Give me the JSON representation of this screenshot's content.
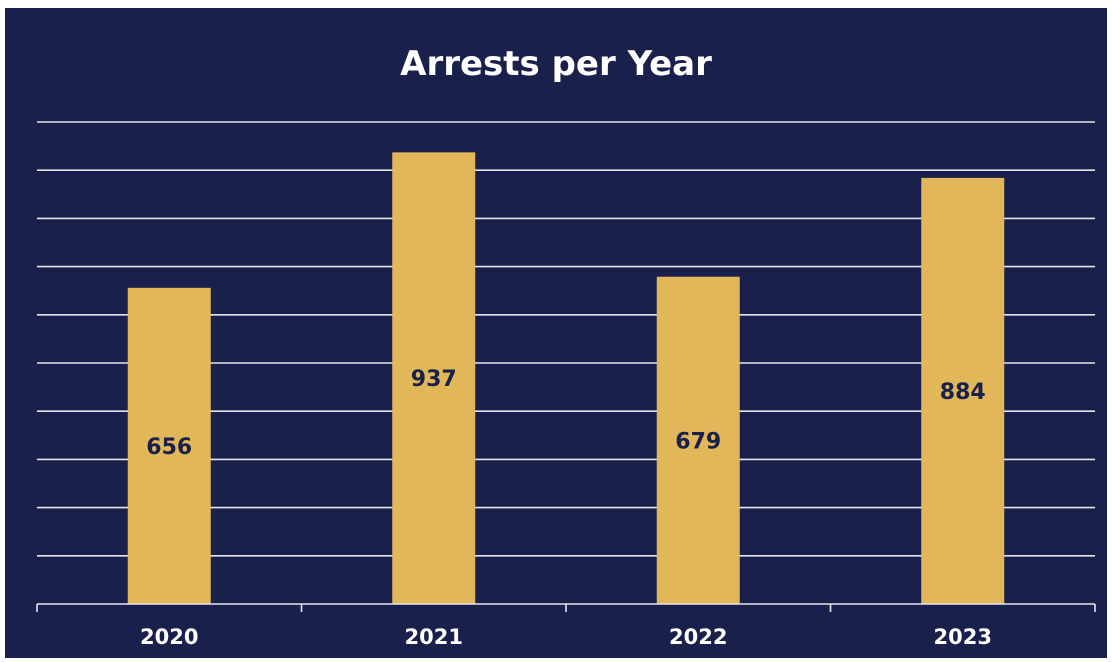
{
  "chart_data": {
    "type": "bar",
    "title": "Arrests per Year",
    "categories": [
      "2020",
      "2021",
      "2022",
      "2023"
    ],
    "values": [
      656,
      937,
      679,
      884
    ],
    "xlabel": "",
    "ylabel": "",
    "ylim": [
      0,
      1000
    ],
    "grid": true,
    "legend": "none",
    "colors": {
      "background": "#18204b",
      "bar": "#e2b75a",
      "bar_label": "#18204b",
      "grid": "#e6e6ea",
      "text": "#ffffff"
    }
  }
}
